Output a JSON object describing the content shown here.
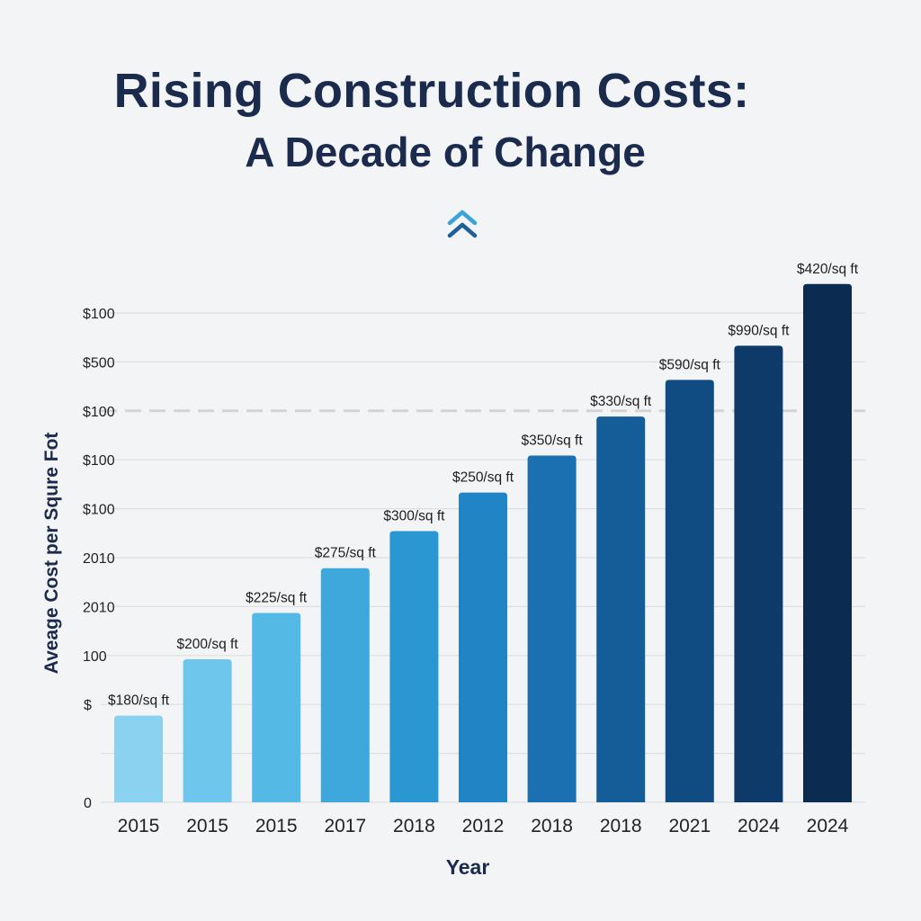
{
  "title": "Rising Construction Costs:",
  "subtitle": "A Decade of Change",
  "icon": "double-chevron-up-icon",
  "colors": {
    "title": "#1b2b4d",
    "gridline": "#dedfe2",
    "dashed_line": "#d2d3d6",
    "bars": [
      "#8bd2f0",
      "#6fc6ec",
      "#55b9e5",
      "#3ea8dd",
      "#2a96d2",
      "#2084c5",
      "#1a70b0",
      "#145d98",
      "#104c82",
      "#0d3a68",
      "#0b2b50"
    ]
  },
  "chart_data": {
    "type": "bar",
    "title": "Rising Construction Costs: A Decade of Change",
    "xlabel": "Year",
    "ylabel": "Avеage Cost per Squre Fot",
    "categories": [
      "2015",
      "2015",
      "2015",
      "2017",
      "2018",
      "2012",
      "2018",
      "2018",
      "2021",
      "2024",
      "2024"
    ],
    "values": [
      180,
      200,
      225,
      275,
      300,
      250,
      350,
      330,
      590,
      990,
      420
    ],
    "bar_heights_relative": [
      180,
      297,
      393,
      486,
      563,
      643,
      720,
      801,
      877,
      948,
      1076
    ],
    "data_labels": [
      "$180/sq ft",
      "$200/sq ft",
      "$225/sq ft",
      "$275/sq ft",
      "$300/sq ft",
      "$250/sq ft",
      "$350/sq ft",
      "$330/sq ft",
      "$590/sq ft",
      "$990/sq ft",
      "$420/sq ft"
    ],
    "y_tick_labels": [
      "0",
      "$",
      "100",
      "2010",
      "2010",
      "$100",
      "$100",
      "$100",
      "$500",
      "$100"
    ],
    "dashed_reference_line_at_tick_index": 8,
    "grid": true,
    "legend": "none"
  }
}
